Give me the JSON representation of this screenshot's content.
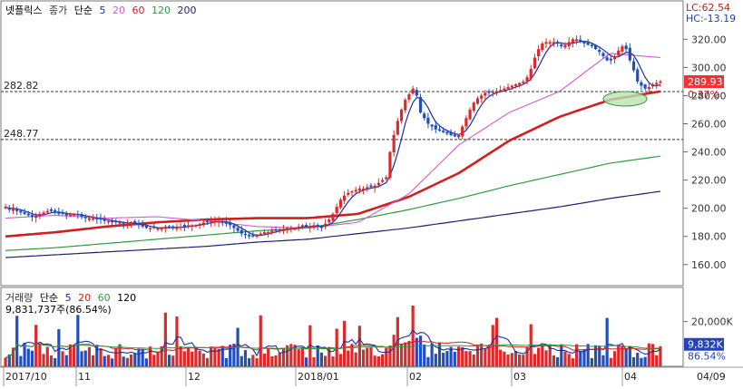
{
  "header": {
    "title": "넷플릭스",
    "price_label": "종가",
    "ma_label": "단순",
    "ma_periods": [
      "5",
      "20",
      "60",
      "120",
      "200"
    ],
    "lc_readout": "LC:62.54",
    "hc_readout": "HC:-13.19"
  },
  "volume_header": {
    "title": "거래량",
    "ma_label": "단순",
    "ma_periods": [
      "5",
      "20",
      "60",
      "120"
    ],
    "value_readout": "9,831,737주(86.54%)"
  },
  "ref_lines": [
    {
      "value": 282.82,
      "label": "282.82"
    },
    {
      "value": 248.77,
      "label": "248.77"
    }
  ],
  "current": {
    "price": "289.93",
    "change": "0.37%",
    "volume": "9,832K",
    "volume_pct": "86.54%"
  },
  "colors": {
    "up": "#d92b2b",
    "down": "#1f4fbf",
    "ma5": "#1a2ea8",
    "ma20": "#d35bd3",
    "ma60": "#d11f1f",
    "ma120": "#2e9b3f",
    "ma200": "#1f1f6e",
    "highlight": "#b9e2b0"
  },
  "chart_data": [
    {
      "type": "candlestick",
      "title": "넷플릭스",
      "ylim": [
        147,
        335
      ],
      "y_ticks": [
        "160.00",
        "180.00",
        "200.00",
        "220.00",
        "240.00",
        "260.00",
        "280.00",
        "300.00",
        "320.00"
      ],
      "x_ticks": [
        "2017/10",
        "11",
        "12",
        "2018/01",
        "02",
        "03",
        "04"
      ],
      "x_right_label": "04/09",
      "approx_closes": [
        201,
        199,
        200,
        198,
        197,
        196,
        195,
        194,
        195,
        196,
        197,
        198,
        198,
        197,
        196,
        196,
        195,
        196,
        196,
        195,
        194,
        193,
        193,
        193,
        192,
        192,
        191,
        191,
        190,
        190,
        190,
        189,
        189,
        190,
        189,
        188,
        187,
        186,
        186,
        186,
        186,
        186,
        187,
        186,
        186,
        187,
        187,
        187,
        188,
        188,
        188,
        189,
        190,
        190,
        191,
        191,
        191,
        190,
        189,
        188,
        186,
        184,
        182,
        181,
        180,
        180,
        181,
        182,
        183,
        183,
        184,
        184,
        185,
        185,
        186,
        186,
        186,
        187,
        188,
        187,
        187,
        188,
        187,
        186,
        189,
        192,
        196,
        201,
        206,
        209,
        211,
        212,
        213,
        214,
        214,
        215,
        215,
        216,
        218,
        220,
        222,
        240,
        252,
        262,
        270,
        277,
        281,
        285,
        280,
        268,
        264,
        260,
        258,
        256,
        255,
        254,
        253,
        252,
        251,
        252,
        258,
        264,
        270,
        275,
        278,
        280,
        282,
        282,
        283,
        283,
        284,
        285,
        286,
        287,
        288,
        289,
        290,
        293,
        299,
        307,
        313,
        317,
        318,
        318,
        318,
        317,
        315,
        316,
        318,
        320,
        320,
        318,
        317,
        316,
        315,
        313,
        311,
        308,
        305,
        305,
        308,
        312,
        315,
        313,
        305,
        298,
        290,
        287,
        285,
        286,
        288,
        289,
        290
      ],
      "ma_series": [
        {
          "name": "200",
          "values": [
            165,
            167,
            169,
            171,
            173,
            176,
            178,
            182,
            186,
            191,
            196,
            201,
            207,
            212
          ]
        },
        {
          "name": "120",
          "values": [
            170,
            172,
            175,
            178,
            181,
            184,
            186,
            192,
            199,
            207,
            216,
            224,
            232,
            237
          ]
        },
        {
          "name": "60",
          "values": [
            180,
            183,
            187,
            190,
            192,
            193,
            193,
            196,
            208,
            225,
            248,
            265,
            277,
            283
          ]
        },
        {
          "name": "20",
          "values": [
            193,
            195,
            193,
            194,
            191,
            187,
            186,
            190,
            210,
            245,
            268,
            283,
            310,
            307
          ]
        }
      ]
    },
    {
      "type": "bar",
      "title": "거래량",
      "ylim": [
        0,
        30000
      ],
      "y_ticks": [
        "20,000K"
      ],
      "unit": "K"
    }
  ]
}
